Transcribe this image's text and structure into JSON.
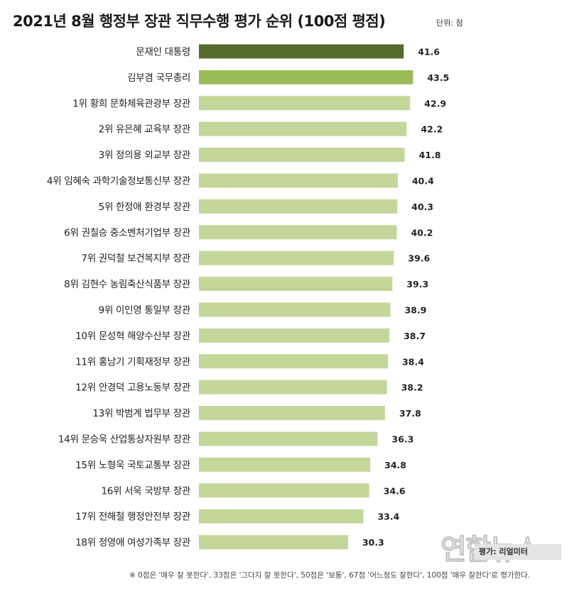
{
  "header": {
    "title": "2021년 8월 행정부 장관 직무수행 평가 순위 (100점 평점)",
    "unit": "단위: 점"
  },
  "colors": {
    "president": "#556b2f",
    "prime_minister": "#9bbb59",
    "minister": "#c4d79b"
  },
  "chart_data": {
    "type": "bar",
    "orientation": "horizontal",
    "title": "2021년 8월 행정부 장관 직무수행 평가 순위 (100점 평점)",
    "unit": "단위: 점",
    "xlim": [
      0,
      60
    ],
    "categories": [
      "문재인 대통령",
      "김부겸 국무총리",
      "1위 황희 문화체육관광부 장관",
      "2위 유은혜 교육부 장관",
      "3위 정의용 외교부 장관",
      "4위 임혜숙 과학기술정보통신부 장관",
      "5위 한정애 환경부 장관",
      "6위 권칠승 중소벤처기업부 장관",
      "7위 권덕철 보건복지부 장관",
      "8위 김현수 농림축산식품부 장관",
      "9위 이인영 통일부 장관",
      "10위 문성혁 해양수산부 장관",
      "11위 홍남기 기획재정부 장관",
      "12위 안경덕 고용노동부 장관",
      "13위 박범계 법무부 장관",
      "14위 문승욱 산업통상자원부 장관",
      "15위 노형욱 국토교통부 장관",
      "16위 서욱 국방부 장관",
      "17위 전해철 행정안전부 장관",
      "18위 정영애 여성가족부 장관"
    ],
    "values": [
      41.6,
      43.5,
      42.9,
      42.2,
      41.8,
      40.4,
      40.3,
      40.2,
      39.6,
      39.3,
      38.9,
      38.7,
      38.4,
      38.2,
      37.8,
      36.3,
      34.8,
      34.6,
      33.4,
      30.3
    ],
    "value_labels": [
      "41.6",
      "43.5",
      "42.9",
      "42.2",
      "41.8",
      "40.4",
      "40.3",
      "40.2",
      "39.6",
      "39.3",
      "38.9",
      "38.7",
      "38.4",
      "38.2",
      "37.8",
      "36.3",
      "34.8",
      "34.6",
      "33.4",
      "30.3"
    ],
    "bar_color_keys": [
      "president",
      "prime_minister",
      "minister",
      "minister",
      "minister",
      "minister",
      "minister",
      "minister",
      "minister",
      "minister",
      "minister",
      "minister",
      "minister",
      "minister",
      "minister",
      "minister",
      "minister",
      "minister",
      "minister",
      "minister"
    ]
  },
  "survey_note": "평가: 리얼미터",
  "footnote": "※ 0점은 '매우 잘 못한다', 33점은 '그다지 잘 못한다', 50점은 '보통', 67점 '어느정도 잘한다', 100점 '매우 잘한다'로 평가한다.",
  "watermark": "연합뉴스"
}
